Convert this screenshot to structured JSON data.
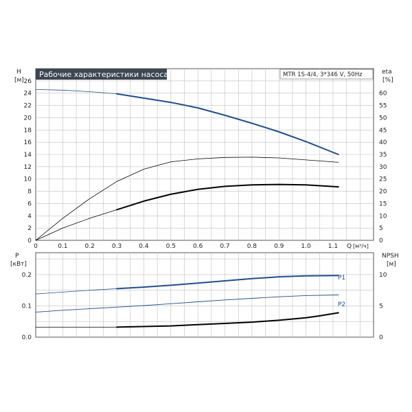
{
  "title": "Рабочие характеристики насоса",
  "model_box": "MTR 1S-4/4, 3*346 V, 50Hz",
  "colors": {
    "pump_curve": "#1f4e8c",
    "power_curve": "#1f4e8c",
    "efficiency": "#000000",
    "npsh": "#000000",
    "grid": "#bfbfbf",
    "title_bg": "#3d4652"
  },
  "chart_data": [
    {
      "type": "line",
      "panel": "head-and-efficiency",
      "x_label": "Q",
      "x_unit": "[м³/ч]",
      "x_ticks": [
        "0",
        "0.1",
        "0.2",
        "0.3",
        "0.4",
        "0.5",
        "0.6",
        "0.7",
        "0.8",
        "0.9",
        "1.0",
        "1.1"
      ],
      "xlim": [
        0,
        1.25
      ],
      "left_axis": {
        "label": "H",
        "unit": "[м]",
        "ylim": [
          0,
          28
        ],
        "ticks": [
          "0",
          "2",
          "4",
          "6",
          "8",
          "10",
          "12",
          "14",
          "16",
          "18",
          "20",
          "22",
          "24",
          "26"
        ]
      },
      "right_axis": {
        "label": "eta",
        "unit": "[%]",
        "ylim": [
          0,
          70
        ],
        "ticks": [
          "0",
          "5",
          "10",
          "15",
          "20",
          "25",
          "30",
          "35",
          "40",
          "45",
          "50",
          "55",
          "60"
        ]
      },
      "grid": true,
      "series": [
        {
          "name": "",
          "axis": "left",
          "x": [
            0,
            0.1,
            0.2,
            0.3
          ],
          "y": [
            24.6,
            24.5,
            24.25,
            23.9
          ],
          "style": "thin"
        },
        {
          "name": "",
          "axis": "left",
          "x": [
            0.3,
            0.4,
            0.5,
            0.6,
            0.7,
            0.8,
            0.9,
            1.0,
            1.12
          ],
          "y": [
            23.9,
            23.2,
            22.5,
            21.6,
            20.4,
            19.1,
            17.7,
            16.1,
            14.0
          ],
          "style": "thick"
        },
        {
          "name": "",
          "axis": "right",
          "x": [
            0,
            0.1,
            0.2,
            0.3,
            0.4,
            0.5,
            0.6,
            0.7,
            0.8,
            0.9,
            1.0,
            1.12
          ],
          "y": [
            0,
            9,
            17,
            24,
            29,
            32,
            33.2,
            33.8,
            33.9,
            33.6,
            32.8,
            31.8
          ],
          "style": "thin"
        },
        {
          "name": "",
          "axis": "right",
          "x": [
            0,
            0.1,
            0.2,
            0.3
          ],
          "y": [
            0,
            5,
            9,
            12.5
          ],
          "style": "thin"
        },
        {
          "name": "",
          "axis": "right",
          "x": [
            0.3,
            0.4,
            0.5,
            0.6,
            0.7,
            0.8,
            0.9,
            1.0,
            1.12
          ],
          "y": [
            12.5,
            16,
            18.8,
            20.8,
            22,
            22.6,
            22.8,
            22.6,
            21.8
          ],
          "style": "thick"
        }
      ]
    },
    {
      "type": "line",
      "panel": "power-and-npsh",
      "left_axis": {
        "label": "P",
        "unit": "[кВт]",
        "ylim": [
          0,
          0.27
        ],
        "ticks": [
          "0.0",
          "0.1",
          "0.2"
        ]
      },
      "right_axis": {
        "label": "NPSH",
        "unit": "[м]",
        "ylim": [
          0,
          13.5
        ],
        "ticks": [
          "0",
          "5",
          "10"
        ]
      },
      "xlim": [
        0,
        1.25
      ],
      "grid": true,
      "series": [
        {
          "name": "P1",
          "axis": "left",
          "x": [
            0,
            0.1,
            0.2,
            0.3,
            0.4,
            0.5,
            0.6,
            0.7,
            0.8,
            0.9,
            1.0,
            1.12
          ],
          "y": [
            0.138,
            0.144,
            0.15,
            0.155,
            0.16,
            0.166,
            0.173,
            0.18,
            0.187,
            0.193,
            0.196,
            0.197
          ],
          "style": "thin-then-thick"
        },
        {
          "name": "P2",
          "axis": "left",
          "x": [
            0,
            0.1,
            0.2,
            0.3,
            0.4,
            0.5,
            0.6,
            0.7,
            0.8,
            0.9,
            1.0,
            1.12
          ],
          "y": [
            0.08,
            0.086,
            0.091,
            0.096,
            0.101,
            0.107,
            0.113,
            0.119,
            0.124,
            0.129,
            0.133,
            0.135
          ],
          "style": "thin"
        },
        {
          "name": "",
          "axis": "right",
          "x": [
            0,
            0.1,
            0.2,
            0.3,
            0.4,
            0.5,
            0.6,
            0.7,
            0.8,
            0.9,
            1.0,
            1.05,
            1.12
          ],
          "y": [
            1.6,
            1.6,
            1.6,
            1.6,
            1.7,
            1.8,
            2.0,
            2.2,
            2.4,
            2.7,
            3.1,
            3.4,
            3.9
          ],
          "style": "thick-from-0.3"
        }
      ]
    }
  ]
}
